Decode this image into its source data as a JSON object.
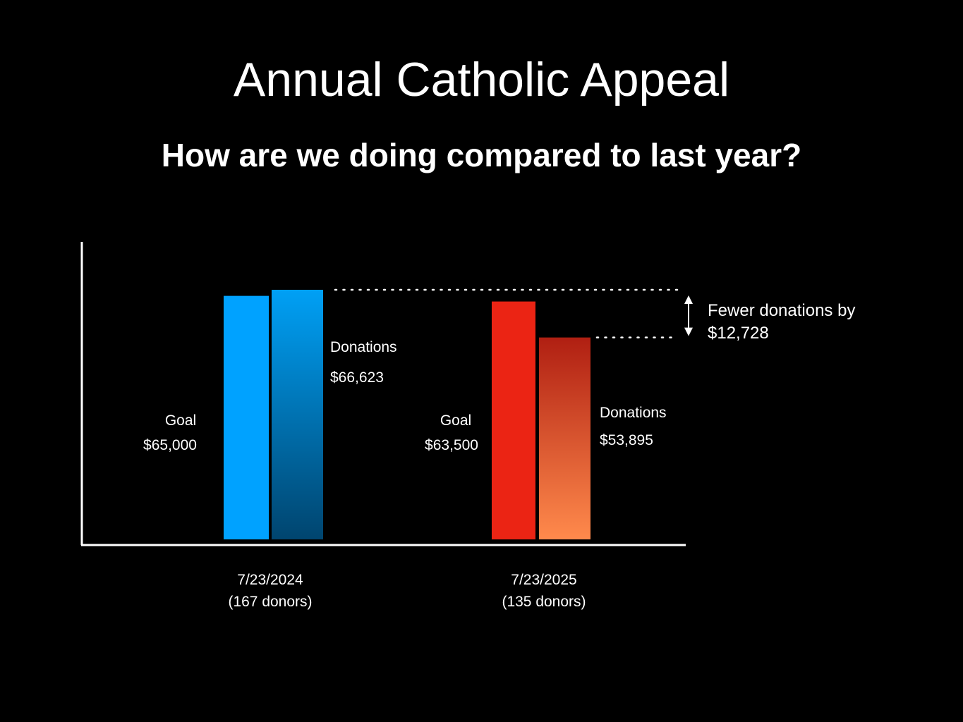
{
  "chart_data": {
    "type": "bar",
    "title": "Annual Catholic Appeal",
    "subtitle": "How are we doing compared to last year?",
    "groups": [
      {
        "date": "7/23/2024",
        "donors": "(167 donors)",
        "bars": [
          {
            "label": "Goal",
            "value_label": "$65,000",
            "value": 65000,
            "color": "#00A2FF"
          },
          {
            "label": "Donations",
            "value_label": "$66,623",
            "value": 66623,
            "color_top": "#00A0F5",
            "color_bottom": "#00456F"
          }
        ]
      },
      {
        "date": "7/23/2025",
        "donors": "(135 donors)",
        "bars": [
          {
            "label": "Goal",
            "value_label": "$63,500",
            "value": 63500,
            "color": "#EB2414"
          },
          {
            "label": "Donations",
            "value_label": "$53,895",
            "value": 53895,
            "color_top": "#B01F12",
            "color_bottom": "#FF8A4C"
          }
        ]
      }
    ],
    "annotation": {
      "line1": "Fewer donations by",
      "line2": "$12,728",
      "difference": 12728
    }
  }
}
